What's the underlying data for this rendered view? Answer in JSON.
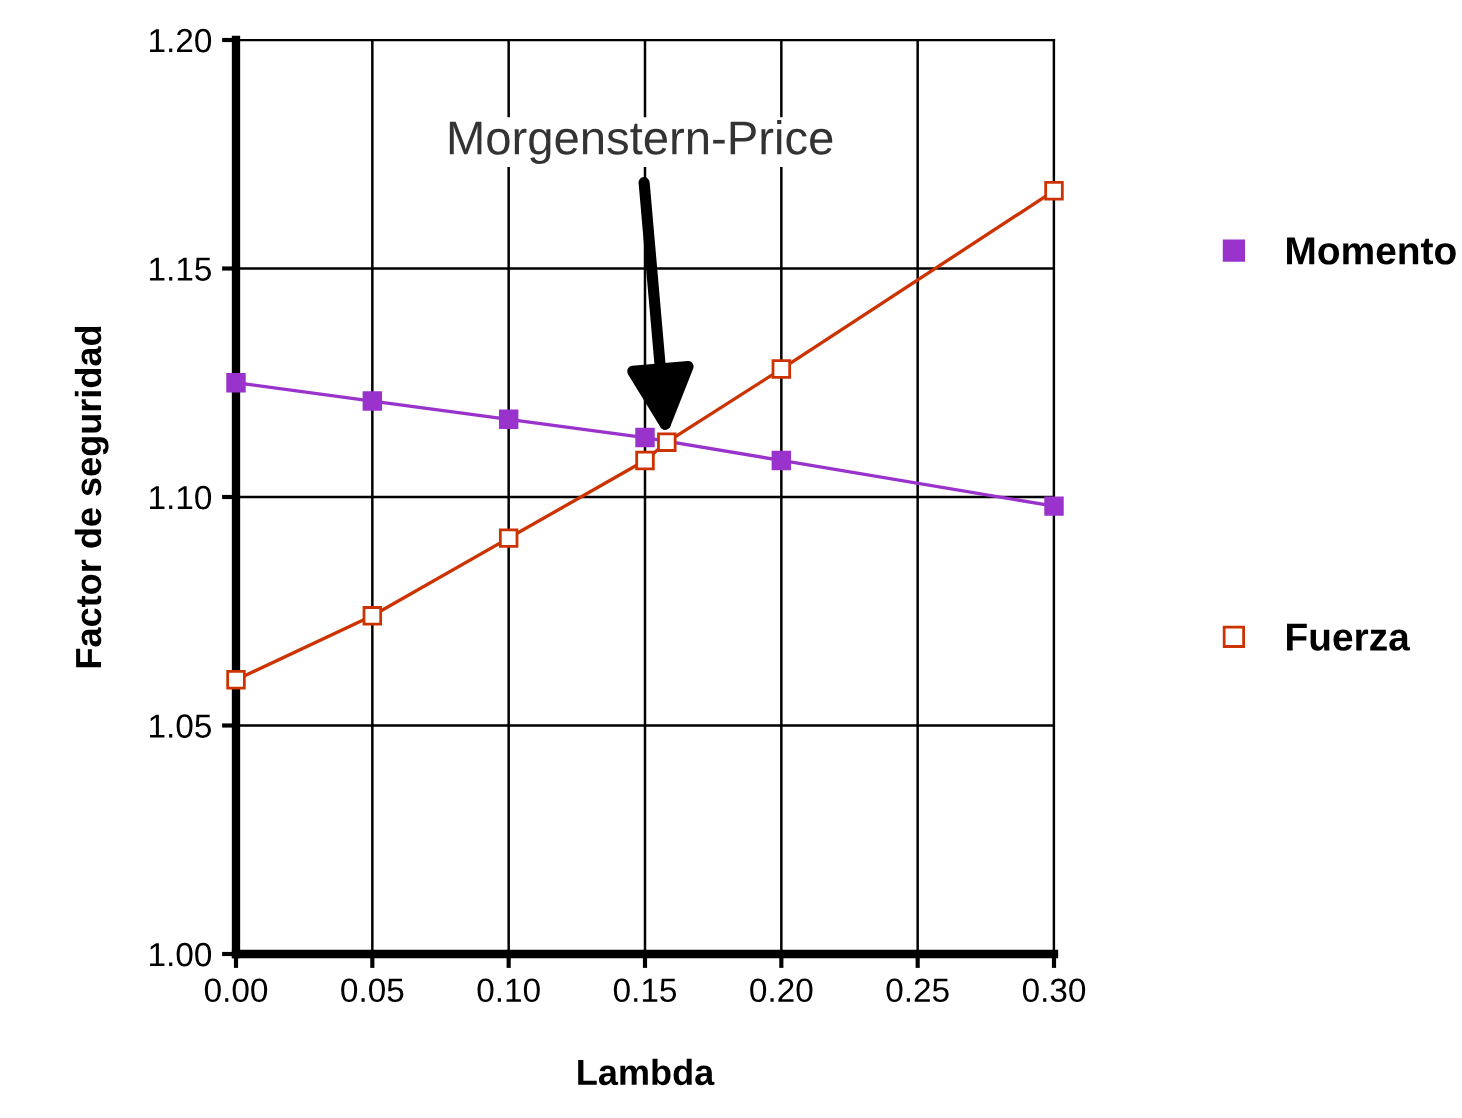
{
  "chart_data": {
    "type": "line",
    "xlabel": "Lambda",
    "ylabel": "Factor de seguridad",
    "series": [
      {
        "name": "Momento",
        "color": "#9933cc",
        "marker": "square",
        "x": [
          0,
          0.05,
          0.1,
          0.15,
          0.2,
          0.3
        ],
        "values": [
          1.125,
          1.121,
          1.117,
          1.113,
          1.108,
          1.098
        ]
      },
      {
        "name": "Fuerza",
        "color": "#cc3300",
        "marker": "square",
        "x": [
          0,
          0.05,
          0.1,
          0.15,
          0.158,
          0.2,
          0.3
        ],
        "values": [
          1.06,
          1.074,
          1.091,
          1.108,
          1.112,
          1.128,
          1.167
        ]
      }
    ],
    "xlim": [
      0,
      0.3
    ],
    "ylim": [
      1.0,
      1.2
    ],
    "xticks": [
      {
        "value": 0,
        "label": "0.00"
      },
      {
        "value": 0.05,
        "label": "0.05"
      },
      {
        "value": 0.1,
        "label": "0.10"
      },
      {
        "value": 0.15,
        "label": "0.15"
      },
      {
        "value": 0.2,
        "label": "0.20"
      },
      {
        "value": 0.25,
        "label": "0.25"
      },
      {
        "value": 0.3,
        "label": "0.30"
      }
    ],
    "yticks": [
      {
        "value": 1.0,
        "label": "1.00"
      },
      {
        "value": 1.05,
        "label": "1.05"
      },
      {
        "value": 1.1,
        "label": "1.10"
      },
      {
        "value": 1.15,
        "label": "1.15"
      },
      {
        "value": 1.2,
        "label": "1.20"
      }
    ],
    "annotations": [
      {
        "text": "Morgenstern-Price",
        "x": 0.158,
        "y": 1.112
      }
    ],
    "grid": true,
    "legend": "right"
  }
}
